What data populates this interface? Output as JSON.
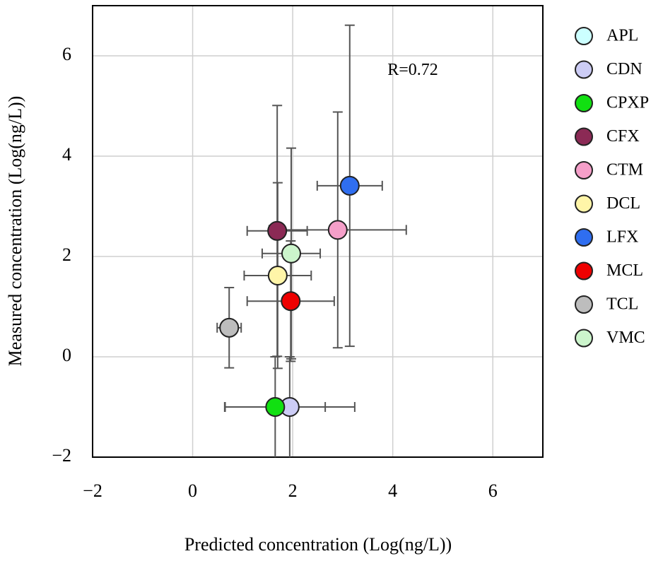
{
  "chart_data": {
    "type": "scatter",
    "x_label": "Predicted concentration (Log(ng/L))",
    "y_label": "Measured concentration (Log(ng/L))",
    "annotation": "R=0.72",
    "xlim": [
      -2,
      7
    ],
    "ylim": [
      -2,
      7
    ],
    "xticks": [
      {
        "value": -2,
        "label": "−2"
      },
      0,
      2,
      4,
      6
    ],
    "yticks": [
      {
        "value": -2,
        "label": "−2"
      },
      0,
      2,
      4,
      6
    ],
    "grid": true,
    "legend": "right",
    "series": [
      {
        "name": "APL",
        "color": "#ccffff",
        "x": [
          null
        ],
        "values": [
          null
        ],
        "xerr": [
          null
        ],
        "yerr": [
          null
        ]
      },
      {
        "name": "CDN",
        "color": "#ccccf5",
        "x": [
          1.94
        ],
        "values": [
          -1.0
        ],
        "xerr": [
          1.3
        ],
        "yerr": [
          1.0
        ]
      },
      {
        "name": "CPXP",
        "color": "#11e011",
        "x": [
          1.65
        ],
        "values": [
          -1.0
        ],
        "xerr": [
          1.0
        ],
        "yerr": [
          1.0
        ]
      },
      {
        "name": "CFX",
        "color": "#8b2a55",
        "x": [
          1.69
        ],
        "values": [
          2.51
        ],
        "xerr": [
          0.6
        ],
        "yerr": [
          2.5
        ]
      },
      {
        "name": "CTM",
        "color": "#f59fc9",
        "x": [
          2.9
        ],
        "values": [
          2.53
        ],
        "xerr": [
          1.37
        ],
        "yerr": [
          2.35
        ]
      },
      {
        "name": "DCL",
        "color": "#fff5a8",
        "x": [
          1.7
        ],
        "values": [
          1.62
        ],
        "xerr": [
          0.67
        ],
        "yerr": [
          1.85
        ]
      },
      {
        "name": "LFX",
        "color": "#2f6ef0",
        "x": [
          3.14
        ],
        "values": [
          3.41
        ],
        "xerr": [
          0.65
        ],
        "yerr": [
          3.2
        ]
      },
      {
        "name": "MCL",
        "color": "#ee0000",
        "x": [
          1.96
        ],
        "values": [
          1.11
        ],
        "xerr": [
          0.87
        ],
        "yerr": [
          1.2
        ]
      },
      {
        "name": "TCL",
        "color": "#bdbdbd",
        "x": [
          0.73
        ],
        "values": [
          0.58
        ],
        "xerr": [
          0.24
        ],
        "yerr": [
          0.8
        ]
      },
      {
        "name": "VMC",
        "color": "#ccf5cc",
        "x": [
          1.97
        ],
        "values": [
          2.06
        ],
        "xerr": [
          0.58
        ],
        "yerr": [
          2.1
        ]
      }
    ]
  }
}
